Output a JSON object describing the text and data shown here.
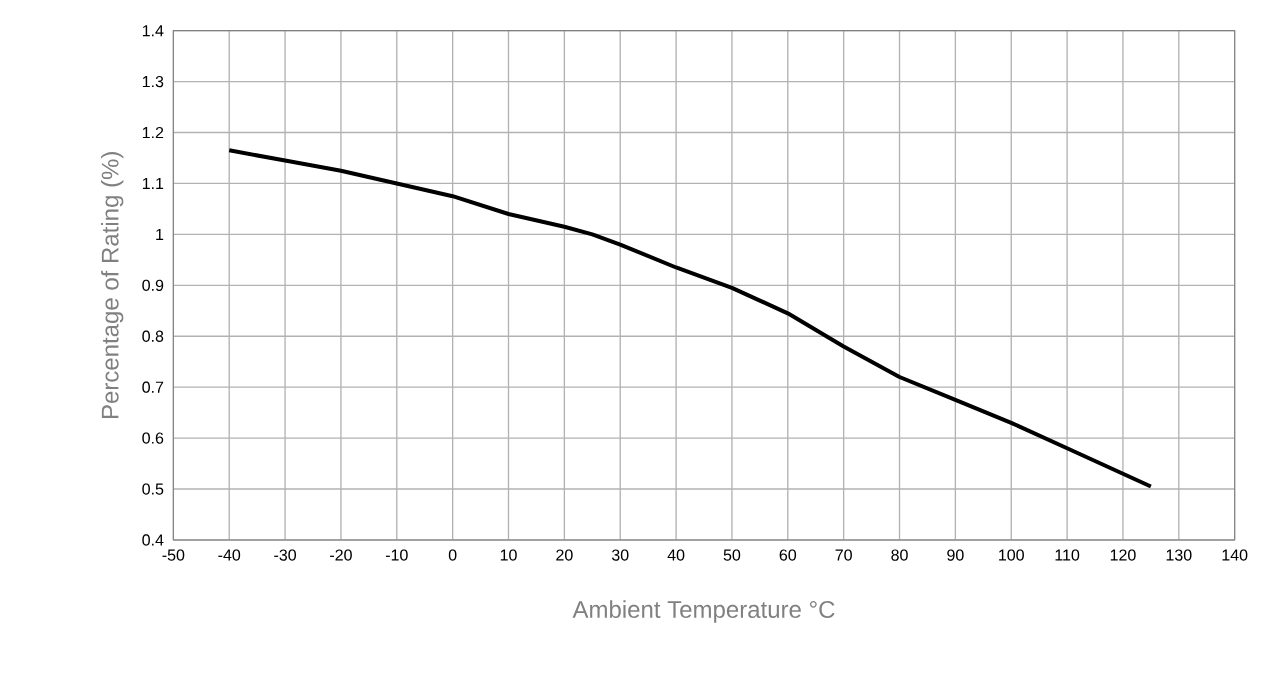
{
  "chart_data": {
    "type": "line",
    "xlabel": "Ambient Temperature °C",
    "ylabel": "Percentage of Rating (%)",
    "x": [
      -40,
      -30,
      -20,
      -10,
      0,
      10,
      20,
      25,
      30,
      40,
      50,
      60,
      70,
      80,
      90,
      100,
      110,
      125
    ],
    "series": [
      {
        "color": "#000000",
        "values": [
          1.165,
          1.145,
          1.125,
          1.1,
          1.075,
          1.04,
          1.015,
          1.0,
          0.98,
          0.935,
          0.895,
          0.845,
          0.78,
          0.72,
          0.675,
          0.63,
          0.58,
          0.505
        ]
      }
    ],
    "xlim": [
      -50,
      140
    ],
    "xticks": [
      -50,
      -40,
      -30,
      -20,
      -10,
      0,
      10,
      20,
      30,
      40,
      50,
      60,
      70,
      80,
      90,
      100,
      110,
      120,
      130,
      140
    ],
    "ylim": [
      0.4,
      1.4
    ],
    "yticks": [
      0.4,
      0.5,
      0.6,
      0.7,
      0.8,
      0.9,
      1,
      1.1,
      1.2,
      1.3,
      1.4
    ],
    "grid": true,
    "marker": "none",
    "line_style": "solid"
  }
}
